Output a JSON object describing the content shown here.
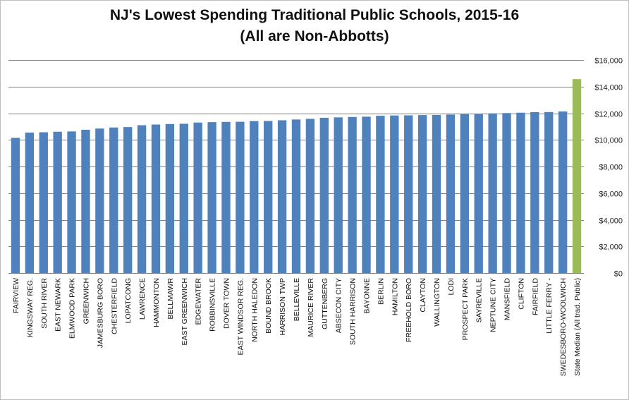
{
  "chart_data": {
    "type": "bar",
    "title": "NJ's Lowest Spending Traditional Public Schools, 2015-16",
    "subtitle": "(All are Non-Abbotts)",
    "xlabel": "",
    "ylabel": "",
    "ylim": [
      0,
      16000
    ],
    "yticks": [
      0,
      2000,
      4000,
      6000,
      8000,
      10000,
      12000,
      14000,
      16000
    ],
    "ytick_labels": [
      "$0",
      "$2,000",
      "$4,000",
      "$6,000",
      "$8,000",
      "$10,000",
      "$12,000",
      "$14,000",
      "$16,000"
    ],
    "y_axis_position": "right",
    "grid": true,
    "legend": "none",
    "colors": {
      "bar": "#4f81bd",
      "highlight": "#9bbb59",
      "grid": "#808080"
    },
    "categories": [
      "FAIRVIEW",
      "KINGSWAY REG.",
      "SOUTH RIVER",
      "EAST NEWARK",
      "ELMWOOD PARK",
      "GREENWICH",
      "JAMESBURG BORO",
      "CHESTERFIELD",
      "LOPATCONG",
      "LAWRENCE",
      "HAMMONTON",
      "BELLMAWR",
      "EAST GREENWICH",
      "EDGEWATER",
      "ROBBINSVILLE",
      "DOVER TOWN",
      "EAST WINDSOR REG.",
      "NORTH HALEDON",
      "BOUND BROOK",
      "HARRISON TWP",
      "BELLEVILLE",
      "MAURICE RIVER",
      "GUTTENBERG",
      "ABSECON CITY",
      "SOUTH HARRISON",
      "BAYONNE",
      "BERLIN",
      "HAMILTON",
      "FREEHOLD BORO",
      "CLAYTON",
      "WALLINGTON",
      "LODI",
      "PROSPECT PARK",
      "SAYREVILLE",
      "NEPTUNE CITY",
      "MANSFIELD",
      "CLIFTON",
      "FAIRFIELD",
      "LITTLE FERRY -",
      "SWEDESBORO-WOOLWICH",
      "State Median (All trad. Public)"
    ],
    "values": [
      10150,
      10550,
      10570,
      10610,
      10630,
      10760,
      10850,
      10930,
      10960,
      11100,
      11150,
      11190,
      11210,
      11300,
      11330,
      11350,
      11360,
      11410,
      11420,
      11470,
      11530,
      11580,
      11660,
      11690,
      11720,
      11740,
      11810,
      11830,
      11840,
      11860,
      11870,
      11900,
      11920,
      11930,
      11990,
      12010,
      12040,
      12080,
      12090,
      12130,
      14560
    ],
    "highlight_index": 40
  }
}
